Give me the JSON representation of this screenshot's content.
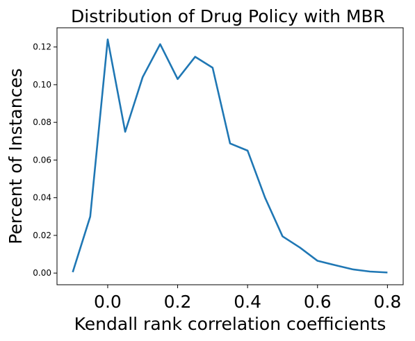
{
  "chart_data": {
    "type": "line",
    "title": "Distribution of Drug Policy with MBR",
    "xlabel": "Kendall rank correlation coefficients",
    "ylabel": "Percent of Instances",
    "xlim": [
      -0.145,
      0.845
    ],
    "ylim": [
      -0.0062,
      0.1302
    ],
    "x_ticks": [
      0.0,
      0.2,
      0.4,
      0.6,
      0.8
    ],
    "x_tick_labels": [
      "0.0",
      "0.2",
      "0.4",
      "0.6",
      "0.8"
    ],
    "y_ticks": [
      0.0,
      0.02,
      0.04,
      0.06,
      0.08,
      0.1,
      0.12
    ],
    "y_tick_labels": [
      "0.00",
      "0.02",
      "0.04",
      "0.06",
      "0.08",
      "0.10",
      "0.12"
    ],
    "grid": false,
    "series": [
      {
        "color": "#1f77b4",
        "x": [
          -0.1,
          -0.05,
          0.0,
          0.05,
          0.1,
          0.15,
          0.2,
          0.25,
          0.3,
          0.35,
          0.4,
          0.45,
          0.5,
          0.55,
          0.6,
          0.65,
          0.7,
          0.75,
          0.8
        ],
        "y": [
          0.0005,
          0.03,
          0.124,
          0.075,
          0.104,
          0.1215,
          0.103,
          0.1148,
          0.109,
          0.0688,
          0.065,
          0.04,
          0.0195,
          0.0135,
          0.0065,
          0.0042,
          0.002,
          0.0008,
          0.0003
        ]
      }
    ]
  }
}
